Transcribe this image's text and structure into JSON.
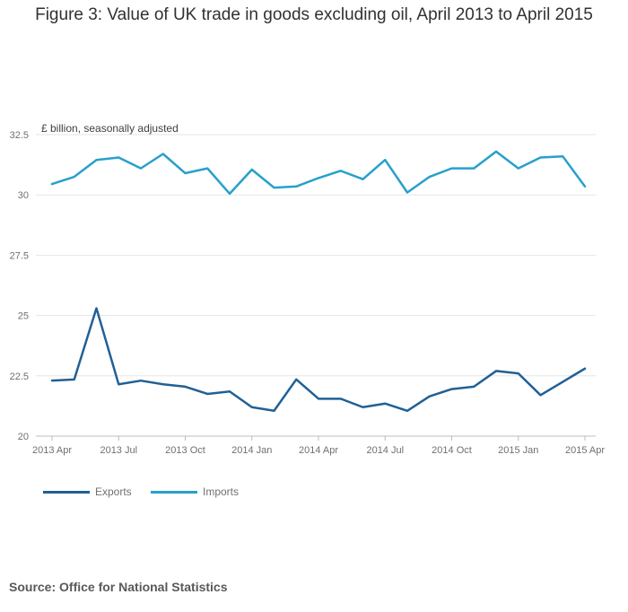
{
  "title": "Figure 3: Value of UK trade in goods excluding oil, April 2013 to April 2015",
  "unit_label": "£ billion, seasonally adjusted",
  "source": "Source: Office for National Statistics",
  "chart_data": {
    "type": "line",
    "title": "Figure 3: Value of UK trade in goods excluding oil, April 2013 to April 2015",
    "ylabel": "£ billion, seasonally adjusted",
    "ylim": [
      20,
      32.5
    ],
    "yticks": [
      20,
      22.5,
      25,
      27.5,
      30,
      32.5
    ],
    "grid": true,
    "legend": "bottom-left",
    "x": [
      "2013 Apr",
      "2013 May",
      "2013 Jun",
      "2013 Jul",
      "2013 Aug",
      "2013 Sep",
      "2013 Oct",
      "2013 Nov",
      "2013 Dec",
      "2014 Jan",
      "2014 Feb",
      "2014 Mar",
      "2014 Apr",
      "2014 May",
      "2014 Jun",
      "2014 Jul",
      "2014 Aug",
      "2014 Sep",
      "2014 Oct",
      "2014 Nov",
      "2014 Dec",
      "2015 Jan",
      "2015 Feb",
      "2015 Mar",
      "2015 Apr"
    ],
    "xtick_labels": [
      "2013 Apr",
      "2013 Jul",
      "2013 Oct",
      "2014 Jan",
      "2014 Apr",
      "2014 Jul",
      "2014 Oct",
      "2015 Jan",
      "2015 Apr"
    ],
    "series": [
      {
        "name": "Exports",
        "color": "#206095",
        "values": [
          22.3,
          22.35,
          25.3,
          22.15,
          22.3,
          22.15,
          22.05,
          21.75,
          21.85,
          21.2,
          21.05,
          22.35,
          21.55,
          21.55,
          21.2,
          21.35,
          21.05,
          21.65,
          21.95,
          22.05,
          22.7,
          22.6,
          21.7,
          22.25,
          22.8
        ]
      },
      {
        "name": "Imports",
        "color": "#27a0cc",
        "values": [
          30.45,
          30.75,
          31.45,
          31.55,
          31.1,
          31.7,
          30.9,
          31.1,
          30.05,
          31.05,
          30.3,
          30.35,
          30.7,
          31.0,
          30.65,
          31.45,
          30.1,
          30.75,
          31.1,
          31.1,
          31.8,
          31.1,
          31.55,
          31.6,
          30.35
        ]
      }
    ]
  }
}
